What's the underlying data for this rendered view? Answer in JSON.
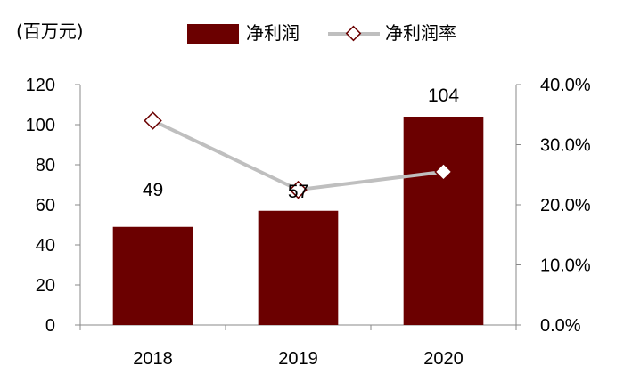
{
  "chart_data": {
    "type": "bar",
    "title": "",
    "unit_label": "(百万元)",
    "categories": [
      "2018",
      "2019",
      "2020"
    ],
    "series": [
      {
        "name": "净利润",
        "type": "bar",
        "axis": "left",
        "values": [
          49,
          57,
          104
        ],
        "color": "#6b0000"
      },
      {
        "name": "净利润率",
        "type": "line",
        "axis": "right",
        "values": [
          0.34,
          0.225,
          0.255
        ],
        "color": "#bfbfbf",
        "marker_color": "#6b0000"
      }
    ],
    "data_labels": [
      "49",
      "57",
      "104"
    ],
    "y_left": {
      "min": 0,
      "max": 120,
      "ticks": [
        "0",
        "20",
        "40",
        "60",
        "80",
        "100",
        "120"
      ]
    },
    "y_right": {
      "min": 0,
      "max": 0.4,
      "ticks": [
        "0.0%",
        "10.0%",
        "20.0%",
        "30.0%",
        "40.0%"
      ]
    },
    "grid": false,
    "legend_position": "top"
  }
}
